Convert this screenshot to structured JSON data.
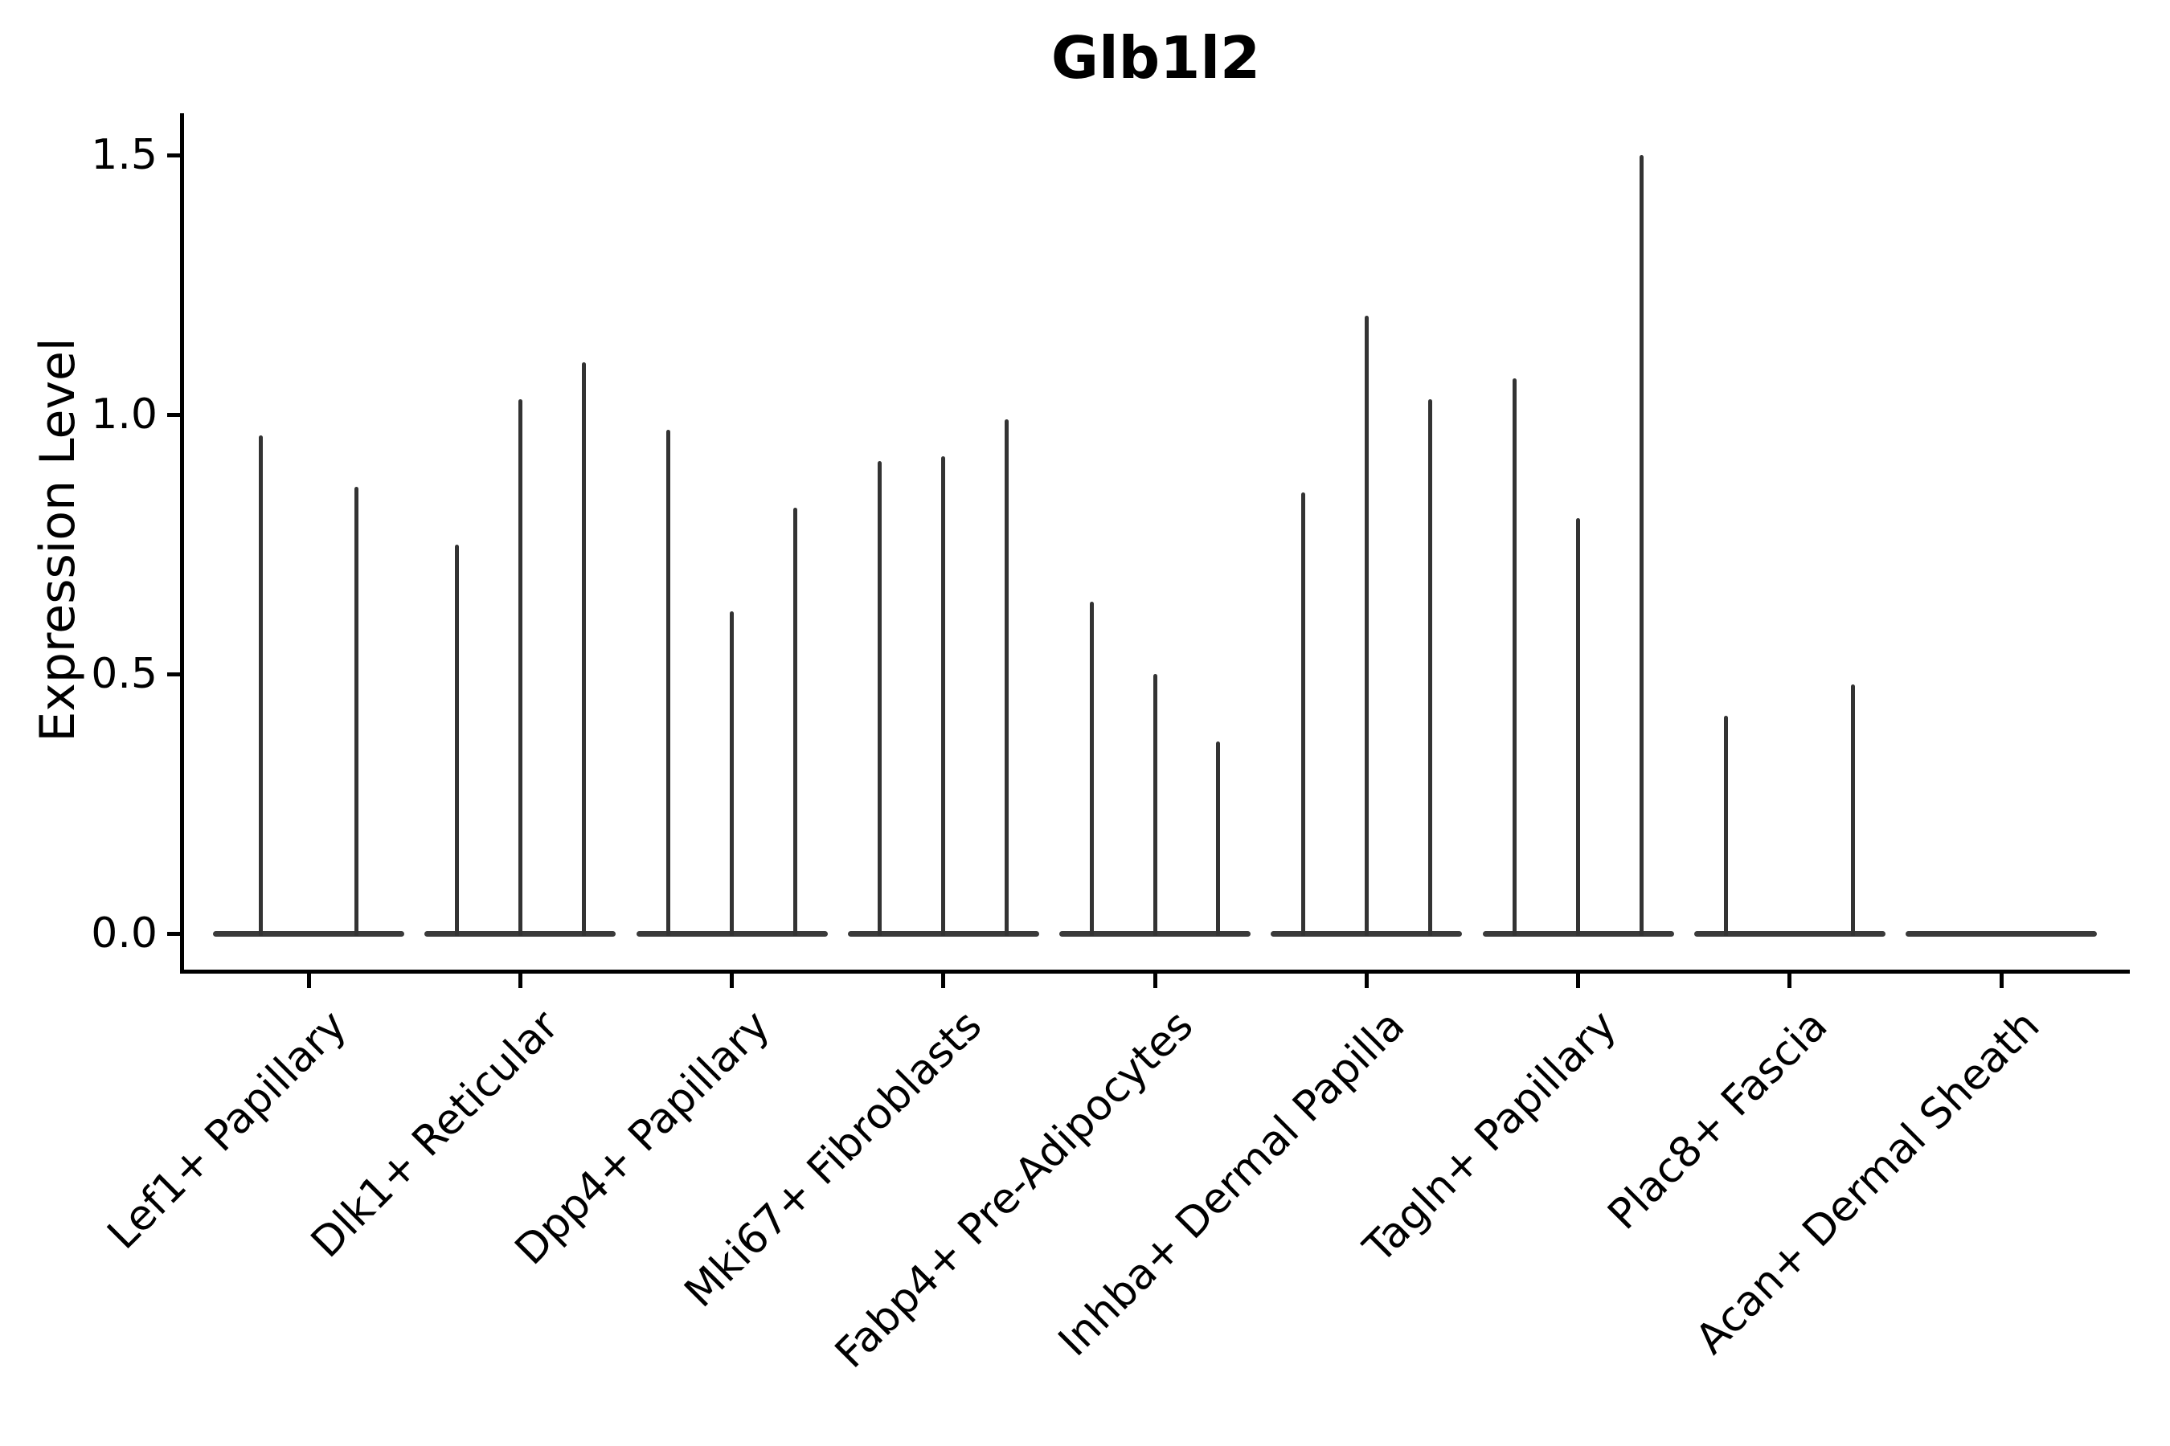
{
  "title": "Glb1l2",
  "chart_data": {
    "type": "violin",
    "title": "Glb1l2",
    "xlabel": "",
    "ylabel": "Expression Level",
    "ylim": [
      -0.11,
      1.58
    ],
    "yticks": [
      0.0,
      0.5,
      1.0,
      1.5
    ],
    "ytick_labels": [
      "0.0",
      "0.5",
      "1.0",
      "1.5"
    ],
    "grid": false,
    "legend_position": "none",
    "categories": [
      "Lef1+ Papillary",
      "Dlk1+ Reticular",
      "Dpp4+ Papillary",
      "Mki67+ Fibroblasts",
      "Fabp4+ Pre-Adipocytes",
      "Inhba+ Dermal Papilla",
      "Tagln+ Papillary",
      "Plac8+ Fascia",
      "Acan+ Dermal Sheath"
    ],
    "groups": [
      {
        "category": "Lef1+ Papillary",
        "violins": [
          {
            "offset": -0.225,
            "max": 0.96
          },
          {
            "offset": 0.225,
            "max": 0.86
          }
        ]
      },
      {
        "category": "Dlk1+ Reticular",
        "violins": [
          {
            "offset": -0.3,
            "max": 0.75
          },
          {
            "offset": 0.0,
            "max": 1.03
          },
          {
            "offset": 0.3,
            "max": 1.1
          }
        ]
      },
      {
        "category": "Dpp4+ Papillary",
        "violins": [
          {
            "offset": -0.3,
            "max": 0.97
          },
          {
            "offset": 0.0,
            "max": 0.62
          },
          {
            "offset": 0.3,
            "max": 0.82
          }
        ]
      },
      {
        "category": "Mki67+ Fibroblasts",
        "violins": [
          {
            "offset": -0.3,
            "max": 0.91
          },
          {
            "offset": 0.0,
            "max": 0.92
          },
          {
            "offset": 0.3,
            "max": 0.99
          }
        ]
      },
      {
        "category": "Fabp4+ Pre-Adipocytes",
        "violins": [
          {
            "offset": -0.3,
            "max": 0.64
          },
          {
            "offset": 0.0,
            "max": 0.5
          },
          {
            "offset": 0.3,
            "max": 0.37
          }
        ]
      },
      {
        "category": "Inhba+ Dermal Papilla",
        "violins": [
          {
            "offset": -0.3,
            "max": 0.85
          },
          {
            "offset": 0.0,
            "max": 1.19
          },
          {
            "offset": 0.3,
            "max": 1.03
          }
        ]
      },
      {
        "category": "Tagln+ Papillary",
        "violins": [
          {
            "offset": -0.3,
            "max": 1.07
          },
          {
            "offset": 0.0,
            "max": 0.8
          },
          {
            "offset": 0.3,
            "max": 1.5
          }
        ]
      },
      {
        "category": "Plac8+ Fascia",
        "violins": [
          {
            "offset": -0.3,
            "max": 0.42
          },
          {
            "offset": 0.3,
            "max": 0.48
          }
        ]
      },
      {
        "category": "Acan+ Dermal Sheath",
        "violins": []
      }
    ],
    "baseline_value": 0.0
  },
  "colors": {
    "violin": "#333333",
    "baseline": "#3a3a3a",
    "axis": "#000000",
    "text": "#000000",
    "background": "#ffffff"
  }
}
